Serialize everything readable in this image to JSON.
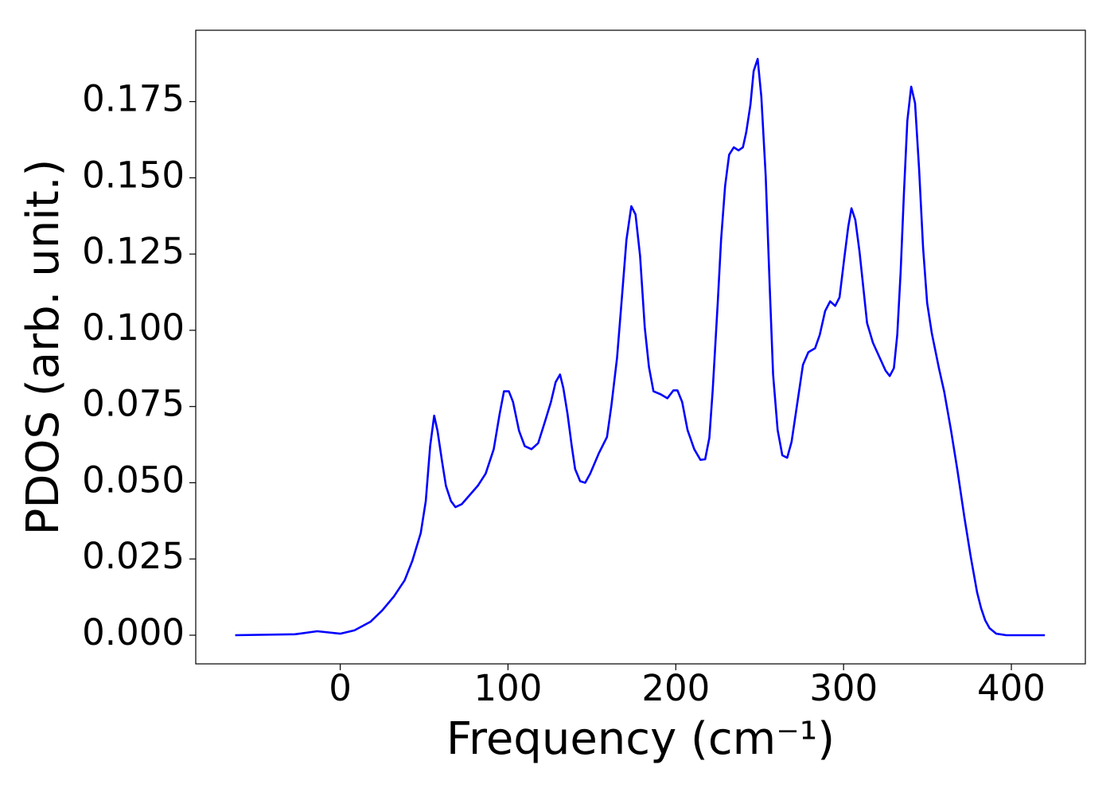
{
  "chart_data": {
    "type": "line",
    "x_label": "Frequency (cm⁻¹)",
    "y_label": "PDOS (arb. unit.)",
    "xlim": [
      -86.1,
      444.1
    ],
    "ylim": [
      -0.0094,
      0.1984
    ],
    "xticks": [
      0,
      100,
      200,
      300,
      400
    ],
    "yticks": [
      {
        "value": 0,
        "label": "0.000"
      },
      {
        "value": 0.025,
        "label": "0.025"
      },
      {
        "value": 0.05,
        "label": "0.050"
      },
      {
        "value": 0.075,
        "label": "0.075"
      },
      {
        "value": 0.1,
        "label": "0.100"
      },
      {
        "value": 0.125,
        "label": "0.125"
      },
      {
        "value": 0.15,
        "label": "0.150"
      },
      {
        "value": 0.175,
        "label": "0.175"
      }
    ],
    "grid": false,
    "series": [
      {
        "color": "#0000ff",
        "x": [
          -62.6,
          -27,
          -13.7,
          0,
          8.5,
          18,
          25,
          32,
          38.4,
          43,
          48,
          51,
          53.6,
          56,
          58,
          60.7,
          63,
          66,
          68.7,
          72.5,
          82,
          86.7,
          91.5,
          95,
          97.6,
          100.5,
          103,
          106.6,
          110,
          114,
          118,
          122,
          125.6,
          128.4,
          131,
          133,
          135.5,
          138,
          140,
          143,
          146,
          149,
          154,
          159,
          161.6,
          165,
          168,
          170.6,
          173.5,
          176,
          178.7,
          181.5,
          184,
          186.7,
          191,
          195,
          198.6,
          201,
          203.8,
          207,
          211,
          214.7,
          217.5,
          220,
          222,
          225,
          227,
          229.4,
          231.8,
          234.6,
          237.4,
          240,
          242,
          244.5,
          246.4,
          248.8,
          251,
          253.6,
          256,
          258,
          260.7,
          263.5,
          266.4,
          269,
          272.5,
          275.8,
          279,
          283,
          285.8,
          289,
          292,
          295,
          297.6,
          300.5,
          302.8,
          304.7,
          307,
          309.5,
          312,
          314,
          317.5,
          321.3,
          325,
          327.5,
          330,
          332,
          334,
          336,
          338,
          340.3,
          342.6,
          345,
          347.4,
          349.8,
          352.6,
          356.9,
          360,
          364,
          367.8,
          372,
          375.8,
          379.6,
          382,
          384.4,
          387,
          391,
          397,
          420
        ],
        "values": [
          0,
          0.0003,
          0.0013,
          0.0005,
          0.0016,
          0.0044,
          0.0081,
          0.0127,
          0.018,
          0.0244,
          0.0335,
          0.044,
          0.062,
          0.072,
          0.067,
          0.057,
          0.049,
          0.044,
          0.042,
          0.043,
          0.049,
          0.053,
          0.061,
          0.0725,
          0.08,
          0.08,
          0.0765,
          0.067,
          0.062,
          0.061,
          0.063,
          0.07,
          0.0765,
          0.083,
          0.0855,
          0.081,
          0.0725,
          0.062,
          0.0545,
          0.0505,
          0.05,
          0.053,
          0.0595,
          0.065,
          0.0752,
          0.091,
          0.1115,
          0.1297,
          0.1407,
          0.138,
          0.1245,
          0.101,
          0.088,
          0.08,
          0.079,
          0.0777,
          0.0803,
          0.0803,
          0.0765,
          0.0673,
          0.061,
          0.0575,
          0.0577,
          0.0647,
          0.0803,
          0.109,
          0.1297,
          0.1474,
          0.1576,
          0.16,
          0.159,
          0.16,
          0.165,
          0.174,
          0.185,
          0.189,
          0.1765,
          0.1505,
          0.114,
          0.0855,
          0.0673,
          0.059,
          0.0582,
          0.0634,
          0.0764,
          0.0887,
          0.0928,
          0.0941,
          0.0985,
          0.1063,
          0.1095,
          0.108,
          0.1108,
          0.124,
          0.134,
          0.14,
          0.1362,
          0.1258,
          0.1128,
          0.1024,
          0.0959,
          0.0913,
          0.0868,
          0.085,
          0.0876,
          0.0985,
          0.119,
          0.1453,
          0.1687,
          0.1799,
          0.1745,
          0.153,
          0.127,
          0.109,
          0.099,
          0.0874,
          0.0798,
          0.0673,
          0.0543,
          0.0387,
          0.0257,
          0.014,
          0.0088,
          0.0049,
          0.0023,
          0.0005,
          0,
          0
        ]
      }
    ]
  }
}
